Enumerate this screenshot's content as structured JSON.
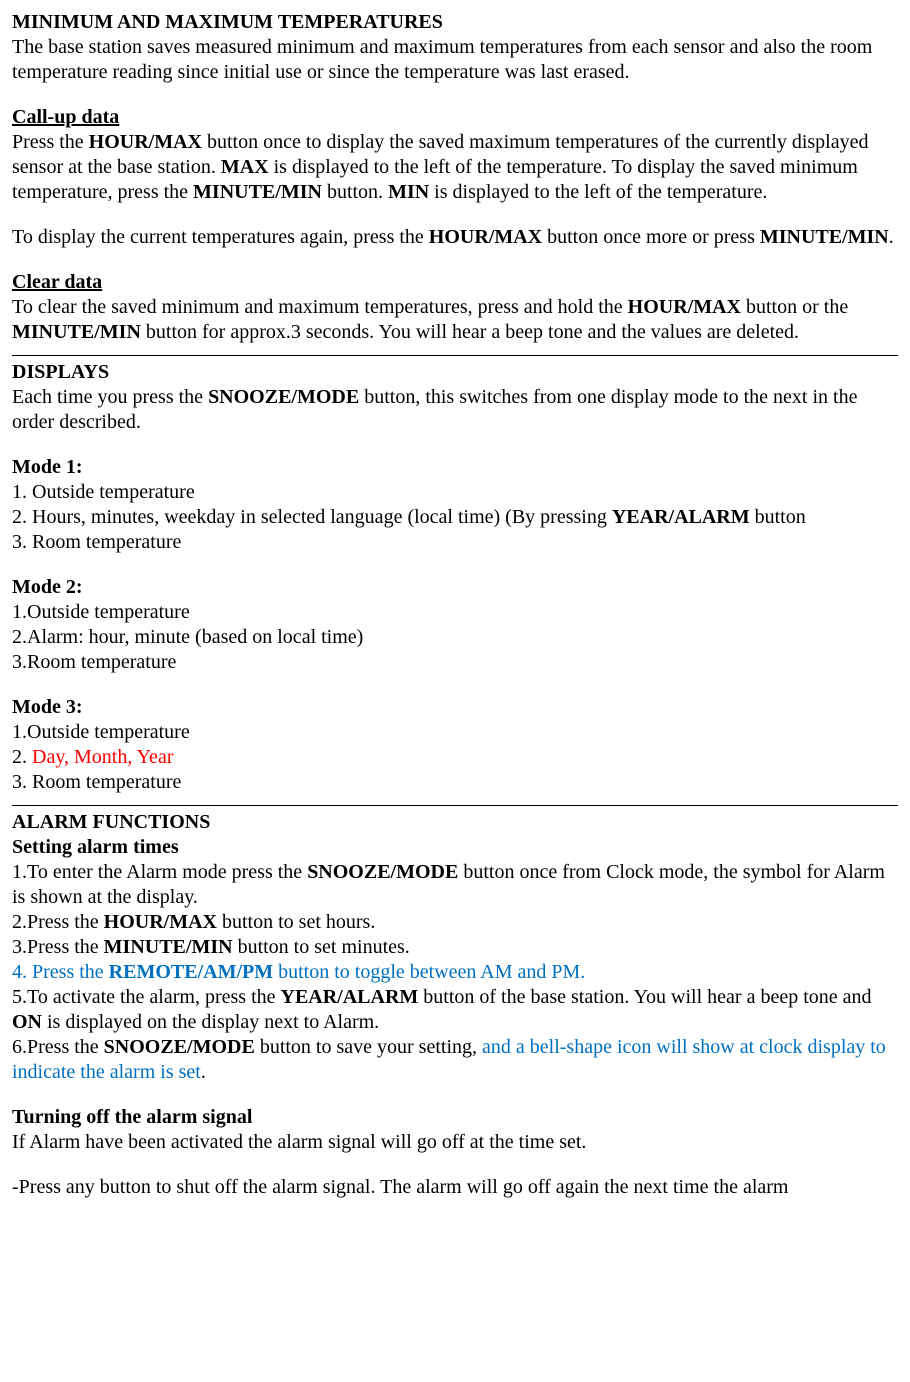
{
  "section1": {
    "heading": "MINIMUM AND MAXIMUM TEMPERATURES",
    "p1": "The base station saves measured minimum and maximum temperatures from each sensor and also the room temperature reading since initial use or since the temperature was last erased.",
    "sub1_heading": "Call-up data",
    "sub1_p1_a": "Press the ",
    "sub1_p1_b": "HOUR/MAX",
    "sub1_p1_c": " button once to display the saved maximum temperatures of the currently displayed sensor at the base station. ",
    "sub1_p1_d": "MAX",
    "sub1_p1_e": " is displayed to the left of the temperature. To display the saved minimum temperature, press the ",
    "sub1_p1_f": "MINUTE/MIN",
    "sub1_p1_g": " button. ",
    "sub1_p1_h": "MIN",
    "sub1_p1_i": " is displayed to the left of the temperature.",
    "sub1_p2_a": "To display the current temperatures again, press the ",
    "sub1_p2_b": "HOUR/MAX",
    "sub1_p2_c": " button once more or press ",
    "sub1_p2_d": "MINUTE/MIN",
    "sub1_p2_e": ".",
    "sub2_heading": "Clear data",
    "sub2_p1_a": "To clear the saved minimum and maximum temperatures, press and hold the ",
    "sub2_p1_b": "HOUR/MAX",
    "sub2_p1_c": " button or the ",
    "sub2_p1_d": "MINUTE/MIN",
    "sub2_p1_e": " button for approx.3 seconds. You will hear a beep tone and the values are deleted."
  },
  "section2": {
    "heading": "DISPLAYS",
    "p1_a": "Each time you press the ",
    "p1_b": "SNOOZE/MODE",
    "p1_c": " button, this switches from one display mode to the next in the order described.",
    "mode1_heading": "Mode 1:",
    "mode1_l1": "1. Outside temperature",
    "mode1_l2_a": "2. Hours, minutes, weekday in selected language (local time) (By pressing ",
    "mode1_l2_b": "YEAR/ALARM",
    "mode1_l2_c": " button",
    "mode1_l3": "3. Room temperature",
    "mode2_heading": "Mode 2:",
    "mode2_l1": "1.Outside temperature",
    "mode2_l2": "2.Alarm: hour, minute (based on local time)",
    "mode2_l3": "3.Room temperature",
    "mode3_heading": "Mode 3:",
    "mode3_l1": "1.Outside temperature",
    "mode3_l2_a": "2. ",
    "mode3_l2_b": "Day, Month, Year",
    "mode3_l3": "3. Room temperature"
  },
  "section3": {
    "heading": "ALARM FUNCTIONS",
    "sub1_heading": "Setting alarm times",
    "s1_a": "1.To enter the Alarm mode press the ",
    "s1_b": "SNOOZE/MODE",
    "s1_c": " button once from Clock mode, the symbol for Alarm is shown at the display.",
    "s2_a": "2.Press the ",
    "s2_b": "HOUR/MAX",
    "s2_c": " button to set hours.",
    "s3_a": "3.Press the ",
    "s3_b": "MINUTE/MIN",
    "s3_c": " button to set minutes.",
    "s4_a": "4. Press the ",
    "s4_b": "REMOTE/AM/PM",
    "s4_c": " button to toggle between AM and PM.",
    "s5_a": "5.To activate the alarm, press the ",
    "s5_b": "YEAR/ALARM",
    "s5_c": " button of the base station. You will hear a beep tone and ",
    "s5_d": "ON",
    "s5_e": " is displayed on the display next to Alarm.",
    "s6_a": "6.Press the ",
    "s6_b": "SNOOZE/MODE",
    "s6_c": " button to save your setting, ",
    "s6_d": "and a bell-shape icon will show at clock display to indicate the alarm is set",
    "s6_e": ".",
    "sub2_heading": "Turning off the alarm signal",
    "sub2_p1": "If Alarm have been activated the alarm signal will go off at the time set.",
    "sub2_p2": "-Press any button to shut off the alarm signal. The alarm will go off again the next time the alarm"
  }
}
